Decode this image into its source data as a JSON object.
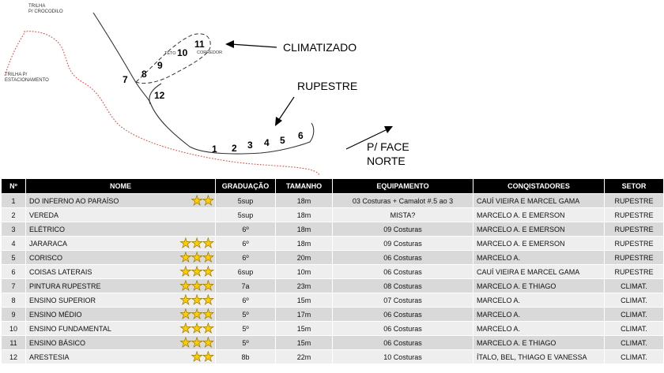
{
  "topo": {
    "trail_crocodilo": [
      "TRILHA",
      "P/ CROCODILO"
    ],
    "trail_estacionamento": [
      "TRILHA P/",
      "ESTACIONAMENTO"
    ],
    "sector_climatizado": "CLIMATIZADO",
    "sector_rupestre": "RUPESTRE",
    "face_note": [
      "P/ FACE",
      "NORTE"
    ],
    "teto_label": "TETO",
    "corredor_label": "CORREDOR",
    "route_numbers": [
      "1",
      "2",
      "3",
      "4",
      "5",
      "6",
      "7",
      "8",
      "9",
      "10",
      "11",
      "12"
    ]
  },
  "table": {
    "headers": [
      "Nº",
      "NOME",
      "GRADUAÇÃO",
      "TAMANHO",
      "EQUIPAMENTO",
      "CONQISTADORES",
      "SETOR"
    ],
    "rows": [
      {
        "n": "1",
        "name": "DO INFERNO AO PARAÍSO",
        "stars": 2,
        "grade": "5sup",
        "length": "18m",
        "gear": "03 Costuras + Camalot #.5 ao 3",
        "authors": "CAUÍ VIEIRA E MARCEL GAMA",
        "sector": "RUPESTRE"
      },
      {
        "n": "2",
        "name": "VEREDA",
        "stars": 0,
        "grade": "5sup",
        "length": "18m",
        "gear": "MISTA?",
        "authors": "MARCELO A. E EMERSON",
        "sector": "RUPESTRE"
      },
      {
        "n": "3",
        "name": "ELÉTRICO",
        "stars": 0,
        "grade": "6º",
        "length": "18m",
        "gear": "09 Costuras",
        "authors": "MARCELO A. E EMERSON",
        "sector": "RUPESTRE"
      },
      {
        "n": "4",
        "name": "JARARACA",
        "stars": 3,
        "grade": "6º",
        "length": "18m",
        "gear": "09 Costuras",
        "authors": "MARCELO A. E EMERSON",
        "sector": "RUPESTRE"
      },
      {
        "n": "5",
        "name": "CORISCO",
        "stars": 3,
        "grade": "6º",
        "length": "20m",
        "gear": "06 Costuras",
        "authors": "MARCELO A.",
        "sector": "RUPESTRE"
      },
      {
        "n": "6",
        "name": "COISAS LATERAIS",
        "stars": 3,
        "grade": "6sup",
        "length": "10m",
        "gear": "06 Costuras",
        "authors": "CAUÍ VIEIRA E MARCEL GAMA",
        "sector": "RUPESTRE"
      },
      {
        "n": "7",
        "name": "PINTURA RUPESTRE",
        "stars": 3,
        "grade": "7a",
        "length": "23m",
        "gear": "08 Costuras",
        "authors": "MARCELO A. E THIAGO",
        "sector": "CLIMAT."
      },
      {
        "n": "8",
        "name": "ENSINO SUPERIOR",
        "stars": 3,
        "grade": "6º",
        "length": "15m",
        "gear": "07 Costuras",
        "authors": "MARCELO A.",
        "sector": "CLIMAT."
      },
      {
        "n": "9",
        "name": "ENSINO MÉDIO",
        "stars": 3,
        "grade": "5º",
        "length": "17m",
        "gear": "06 Costuras",
        "authors": "MARCELO A.",
        "sector": "CLIMAT."
      },
      {
        "n": "10",
        "name": "ENSINO FUNDAMENTAL",
        "stars": 3,
        "grade": "5º",
        "length": "15m",
        "gear": "06 Costuras",
        "authors": "MARCELO A.",
        "sector": "CLIMAT."
      },
      {
        "n": "11",
        "name": "ENSINO BÁSICO",
        "stars": 3,
        "grade": "5º",
        "length": "15m",
        "gear": "06 Costuras",
        "authors": "MARCELO A. E THIAGO",
        "sector": "CLIMAT."
      },
      {
        "n": "12",
        "name": "ARESTESIA",
        "stars": 2,
        "grade": "8b",
        "length": "22m",
        "gear": "10 Costuras",
        "authors": "ÍTALO, BEL, THIAGO E VANESSA",
        "sector": "CLIMAT."
      }
    ]
  },
  "colors": {
    "header_bg": "#000000",
    "row_odd": "#d9d9d9",
    "row_even": "#eeeeee",
    "star": "#ffcc00",
    "trail": "#e8453c"
  }
}
